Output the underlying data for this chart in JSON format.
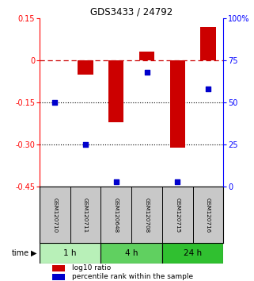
{
  "title": "GDS3433 / 24792",
  "samples": [
    "GSM120710",
    "GSM120711",
    "GSM120648",
    "GSM120708",
    "GSM120715",
    "GSM120716"
  ],
  "time_groups": [
    {
      "label": "1 h",
      "color": "#b8f0b8"
    },
    {
      "label": "4 h",
      "color": "#60d060"
    },
    {
      "label": "24 h",
      "color": "#30c030"
    }
  ],
  "log10_ratio": [
    0.0,
    -0.05,
    -0.22,
    0.03,
    -0.31,
    0.12
  ],
  "percentile_rank": [
    50,
    25,
    3,
    68,
    3,
    58
  ],
  "ylim_left": [
    -0.45,
    0.15
  ],
  "ylim_right": [
    0,
    100
  ],
  "yticks_left": [
    0.15,
    0.0,
    -0.15,
    -0.3,
    -0.45
  ],
  "yticks_right": [
    100,
    75,
    50,
    25,
    0
  ],
  "hlines": [
    -0.15,
    -0.3
  ],
  "bar_color": "#cc0000",
  "dot_color": "#0000cc",
  "bar_width": 0.5,
  "bg_color": "#ffffff",
  "xlabel_bg": "#c8c8c8"
}
